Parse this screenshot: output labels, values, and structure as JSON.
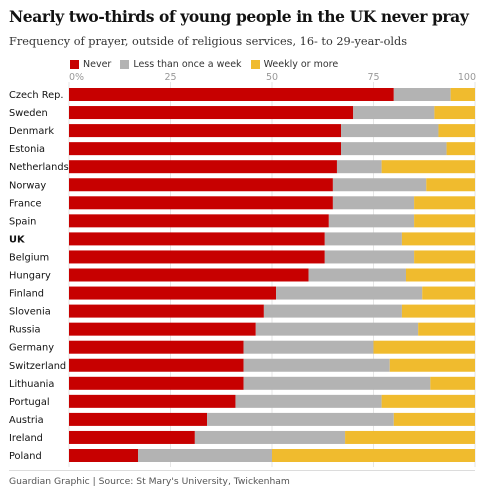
{
  "header": {
    "title": "Nearly two-thirds of young people in the UK never pray",
    "subtitle": "Frequency of prayer, outside of religious services, 16- to 29-year-olds"
  },
  "footer": {
    "source": "Guardian Graphic | Source: St Mary's University, Twickenham"
  },
  "colors": {
    "never": "#c70000",
    "less_than_weekly": "#b3b3b3",
    "weekly_or_more": "#f0bb2e"
  },
  "chart_data": {
    "type": "bar",
    "orientation": "horizontal",
    "stacked": true,
    "percent_stacked": true,
    "title": "Nearly two-thirds of young people in the UK never pray",
    "subtitle": "Frequency of prayer, outside of religious services, 16- to 29-year-olds",
    "xlim": [
      0,
      100
    ],
    "xticks": [
      "0%",
      "25",
      "50",
      "75",
      "100"
    ],
    "grid": true,
    "legend_position": "top-left",
    "highlighted_category": "UK",
    "categories": [
      "Czech Rep.",
      "Sweden",
      "Denmark",
      "Estonia",
      "Netherlands",
      "Norway",
      "France",
      "Spain",
      "UK",
      "Belgium",
      "Hungary",
      "Finland",
      "Slovenia",
      "Russia",
      "Germany",
      "Switzerland",
      "Lithuania",
      "Portugal",
      "Austria",
      "Ireland",
      "Poland"
    ],
    "series": [
      {
        "name": "Never",
        "color": "#c70000",
        "values": [
          80,
          70,
          67,
          67,
          66,
          65,
          65,
          64,
          63,
          63,
          59,
          51,
          48,
          46,
          43,
          43,
          43,
          41,
          34,
          31,
          17
        ]
      },
      {
        "name": "Less than once a week",
        "color": "#b3b3b3",
        "values": [
          14,
          20,
          24,
          26,
          11,
          23,
          20,
          21,
          19,
          22,
          24,
          36,
          34,
          40,
          32,
          36,
          46,
          36,
          46,
          37,
          33
        ]
      },
      {
        "name": "Weekly or more",
        "color": "#f0bb2e",
        "values": [
          6,
          10,
          9,
          7,
          23,
          12,
          15,
          15,
          18,
          15,
          17,
          13,
          18,
          14,
          25,
          21,
          11,
          23,
          20,
          32,
          50
        ]
      }
    ]
  }
}
